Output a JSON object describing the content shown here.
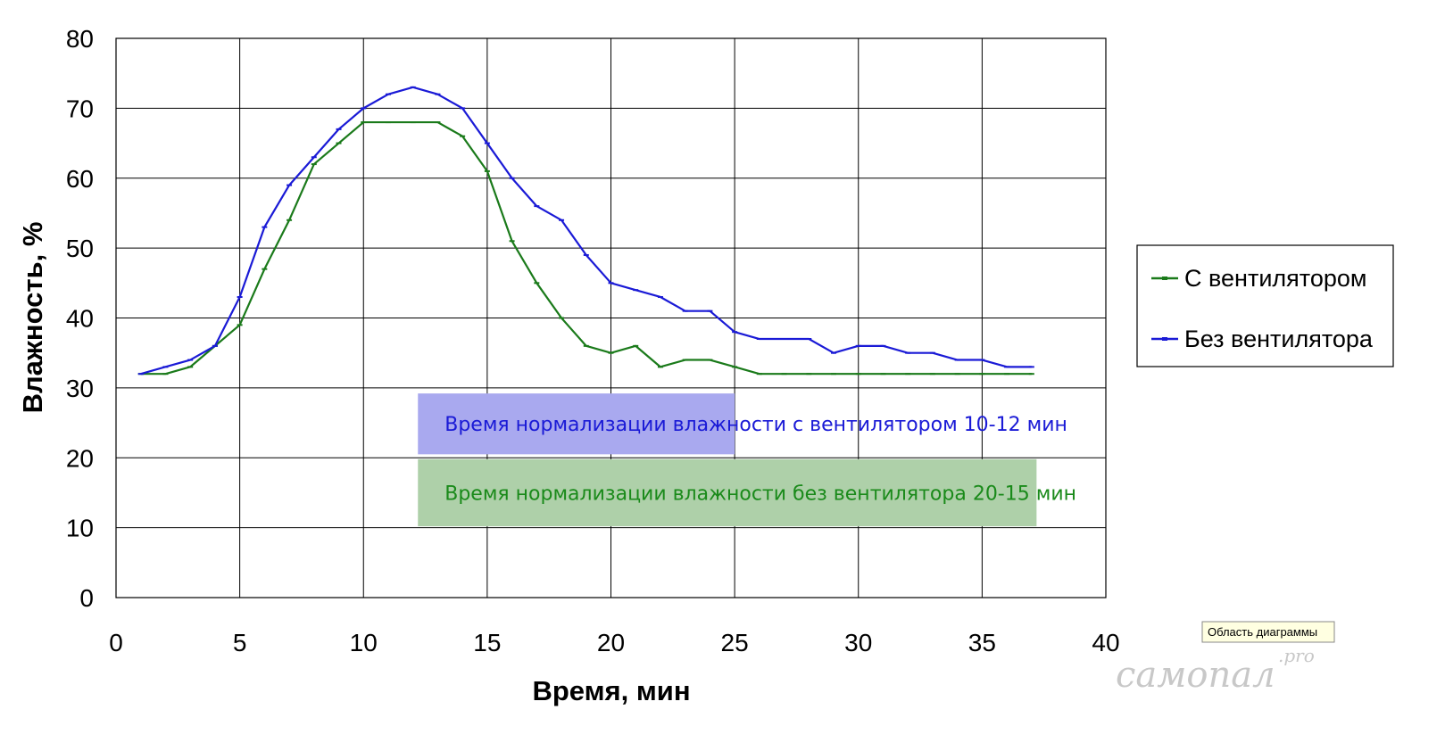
{
  "chart_data": {
    "type": "line",
    "xlabel": "Время, мин",
    "ylabel": "Влажность, %",
    "xlim": [
      0,
      40
    ],
    "ylim": [
      0,
      80
    ],
    "x_ticks": [
      0,
      5,
      10,
      15,
      20,
      25,
      30,
      35,
      40
    ],
    "y_ticks": [
      0,
      10,
      20,
      30,
      40,
      50,
      60,
      70,
      80
    ],
    "grid": true,
    "legend_position": "right",
    "x": [
      1,
      2,
      3,
      4,
      5,
      6,
      7,
      8,
      9,
      10,
      11,
      12,
      13,
      14,
      15,
      16,
      17,
      18,
      19,
      20,
      21,
      22,
      23,
      24,
      25,
      26,
      27,
      28,
      29,
      30,
      31,
      32,
      33,
      34,
      35,
      36,
      37
    ],
    "series": [
      {
        "name": "С вентилятором",
        "color": "#1a7a1a",
        "values": [
          32,
          32,
          33,
          36,
          39,
          47,
          54,
          62,
          65,
          68,
          68,
          68,
          68,
          66,
          61,
          51,
          45,
          40,
          36,
          35,
          36,
          33,
          34,
          34,
          33,
          32,
          32,
          32,
          32,
          32,
          32,
          32,
          32,
          32,
          32,
          32,
          32
        ]
      },
      {
        "name": "Без вентилятора",
        "color": "#1a1ad6",
        "values": [
          32,
          33,
          34,
          36,
          43,
          53,
          59,
          63,
          67,
          70,
          72,
          73,
          72,
          70,
          65,
          60,
          56,
          54,
          49,
          45,
          44,
          43,
          41,
          41,
          38,
          37,
          37,
          37,
          35,
          36,
          36,
          35,
          35,
          34,
          34,
          33,
          33
        ]
      }
    ],
    "annotations": [
      {
        "text": "Время нормализации влажности с вентилятором 10-12 мин",
        "text_color": "#1a1ad6",
        "box_color": "#a9a9ef",
        "x_range": [
          12.2,
          25
        ],
        "y_range": [
          20.5,
          29.2
        ]
      },
      {
        "text": "Время нормализации влажности без вентилятора 20-15 мин",
        "text_color": "#1a8a1a",
        "box_color": "#aed0a9",
        "x_range": [
          12.2,
          37.2
        ],
        "y_range": [
          10.2,
          19.8
        ]
      }
    ]
  },
  "tooltip": {
    "text": "Область диаграммы"
  },
  "watermark": {
    "main": "самопал",
    "suffix": ".pro"
  }
}
